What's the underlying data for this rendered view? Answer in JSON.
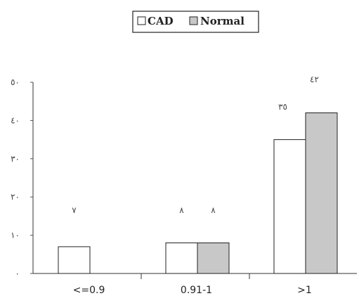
{
  "chart_data": {
    "type": "bar",
    "categories": [
      "<=0.9",
      "0.91-1",
      ">1"
    ],
    "series": [
      {
        "name": "CAD",
        "values": [
          7,
          8,
          35
        ],
        "labels": [
          "٧",
          "٨",
          "٣٥"
        ],
        "color": "#ffffff"
      },
      {
        "name": "Normal",
        "values": [
          0,
          8,
          42
        ],
        "labels": [
          "",
          "٨",
          "٤٢"
        ],
        "color": "#c8c8c8"
      }
    ],
    "yticks": [
      {
        "value": 0,
        "label": "٠"
      },
      {
        "value": 10,
        "label": "١٠"
      },
      {
        "value": 20,
        "label": "٢٠"
      },
      {
        "value": 30,
        "label": "٣٠"
      },
      {
        "value": 40,
        "label": "٤٠"
      },
      {
        "value": 50,
        "label": "٥٠"
      }
    ],
    "ylim": [
      0,
      50
    ],
    "legend_position": "top-center",
    "title": "",
    "xlabel": "",
    "ylabel": ""
  }
}
